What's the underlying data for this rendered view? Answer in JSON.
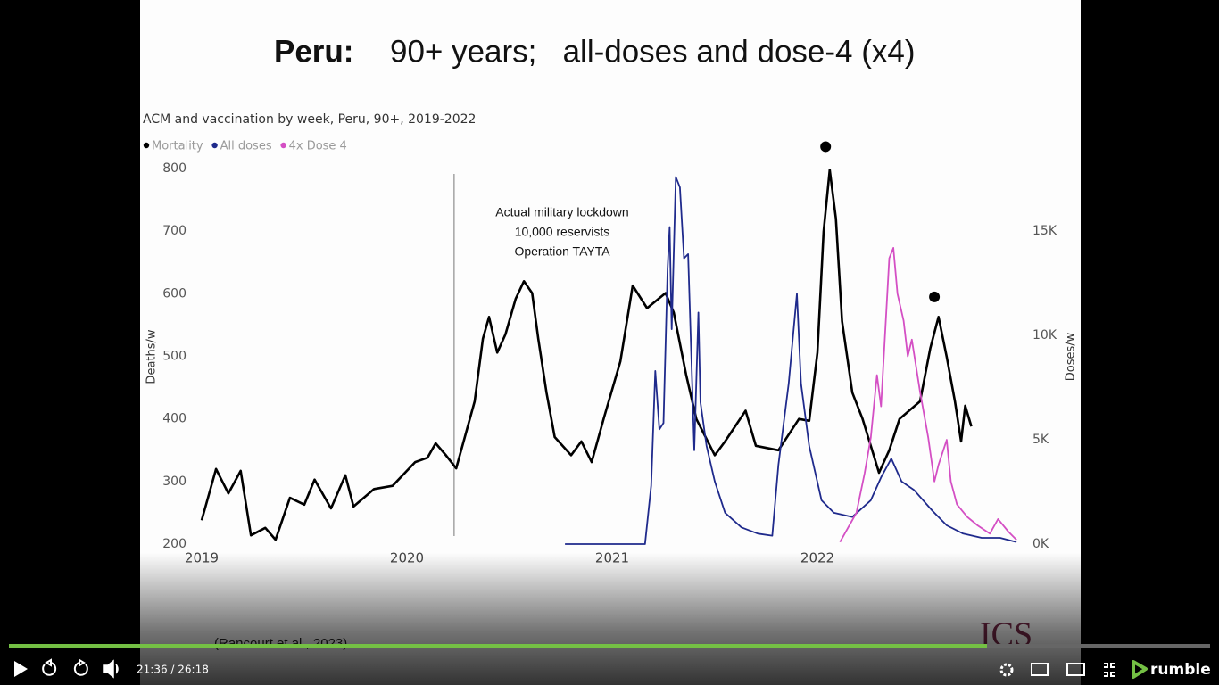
{
  "slide": {
    "title_lead": "Peru:",
    "title": "90+ years;   all-doses and dose-4 (x4)",
    "source": "(Rancourt et al., 2023)",
    "logo": "ICS"
  },
  "chart_data": {
    "type": "line",
    "title": "ACM and vaccination by week, Peru, 90+, 2019-2022",
    "y_label": "Deaths/w",
    "y2_label": "Doses/w",
    "legend": "top-left",
    "xlim": [
      2019,
      2023
    ],
    "xticks": [
      2019,
      2020,
      2021,
      2022
    ],
    "ylim": [
      200,
      800
    ],
    "yticks": [
      200,
      300,
      400,
      500,
      600,
      700,
      800
    ],
    "y2lim": [
      0,
      18000
    ],
    "y2ticks": [
      {
        "value": 0,
        "label": "0K"
      },
      {
        "value": 5000,
        "label": "5K"
      },
      {
        "value": 10000,
        "label": "10K"
      },
      {
        "value": 15000,
        "label": "15K"
      }
    ],
    "series": [
      {
        "name": "Mortality",
        "color": "#000000",
        "axis": "y",
        "x": [
          2019.0,
          2019.07,
          2019.13,
          2019.19,
          2019.24,
          2019.31,
          2019.36,
          2019.43,
          2019.5,
          2019.55,
          2019.63,
          2019.7,
          2019.74,
          2019.84,
          2019.93,
          2020.04,
          2020.1,
          2020.14,
          2020.19,
          2020.24,
          2020.33,
          2020.37,
          2020.4,
          2020.44,
          2020.48,
          2020.53,
          2020.57,
          2020.61,
          2020.64,
          2020.68,
          2020.72,
          2020.8,
          2020.85,
          2020.9,
          2020.96,
          2021.04,
          2021.1,
          2021.17,
          2021.26,
          2021.3,
          2021.36,
          2021.41,
          2021.5,
          2021.55,
          2021.65,
          2021.7,
          2021.81,
          2021.91,
          2021.96,
          2022.0,
          2022.03,
          2022.06,
          2022.09,
          2022.12,
          2022.17,
          2022.22,
          2022.3,
          2022.35,
          2022.4,
          2022.5,
          2022.55,
          2022.59,
          2022.63,
          2022.67,
          2022.7,
          2022.72,
          2022.75
        ],
        "values": [
          238,
          320,
          281,
          317,
          214,
          226,
          207,
          274,
          263,
          303,
          257,
          310,
          260,
          288,
          293,
          331,
          338,
          361,
          342,
          321,
          428,
          528,
          563,
          506,
          535,
          592,
          620,
          601,
          528,
          442,
          371,
          342,
          364,
          331,
          402,
          492,
          613,
          577,
          601,
          570,
          471,
          400,
          342,
          364,
          413,
          357,
          350,
          400,
          397,
          506,
          699,
          798,
          720,
          556,
          442,
          400,
          314,
          350,
          400,
          428,
          513,
          563,
          499,
          428,
          364,
          421,
          388
        ]
      },
      {
        "name": "All doses",
        "color": "#1f2a8c",
        "axis": "y2",
        "x": [
          2020.77,
          2021.16,
          2021.19,
          2021.21,
          2021.23,
          2021.25,
          2021.27,
          2021.28,
          2021.29,
          2021.31,
          2021.33,
          2021.35,
          2021.37,
          2021.4,
          2021.42,
          2021.43,
          2021.46,
          2021.5,
          2021.55,
          2021.63,
          2021.71,
          2021.78,
          2021.81,
          2021.86,
          2021.9,
          2021.92,
          2021.96,
          2022.02,
          2022.08,
          2022.17,
          2022.26,
          2022.31,
          2022.36,
          2022.41,
          2022.47,
          2022.56,
          2022.63,
          2022.71,
          2022.8,
          2022.89,
          2022.97
        ],
        "values": [
          0,
          0,
          2800,
          8300,
          5500,
          5800,
          13200,
          15200,
          10300,
          17600,
          17100,
          13700,
          13900,
          4500,
          11100,
          6800,
          4700,
          3000,
          1500,
          800,
          500,
          400,
          3800,
          7700,
          12000,
          7700,
          4700,
          2100,
          1500,
          1300,
          2100,
          3200,
          4100,
          3000,
          2600,
          1600,
          900,
          500,
          300,
          300,
          100
        ]
      },
      {
        "name": "4x Dose 4",
        "color": "#d44fc4",
        "axis": "y2",
        "x": [
          2022.11,
          2022.19,
          2022.23,
          2022.26,
          2022.29,
          2022.31,
          2022.35,
          2022.37,
          2022.39,
          2022.42,
          2022.44,
          2022.46,
          2022.5,
          2022.54,
          2022.57,
          2022.59,
          2022.63,
          2022.65,
          2022.68,
          2022.73,
          2022.78,
          2022.84,
          2022.88,
          2022.93,
          2022.97
        ],
        "values": [
          100,
          1500,
          3400,
          5100,
          8100,
          6600,
          13700,
          14200,
          12000,
          10700,
          9000,
          9800,
          7300,
          5100,
          3000,
          3800,
          5000,
          3000,
          1900,
          1300,
          900,
          500,
          1200,
          600,
          200
        ]
      }
    ],
    "markers": [
      {
        "x": 2022.04,
        "y": 835
      },
      {
        "x": 2022.57,
        "y": 595
      }
    ],
    "annotation": {
      "x": 2020.23,
      "lines": [
        "Actual military lockdown",
        "10,000 reservists",
        "Operation TAYTA"
      ]
    }
  },
  "player": {
    "time": "21:36 / 26:18",
    "brand": "rumble"
  }
}
